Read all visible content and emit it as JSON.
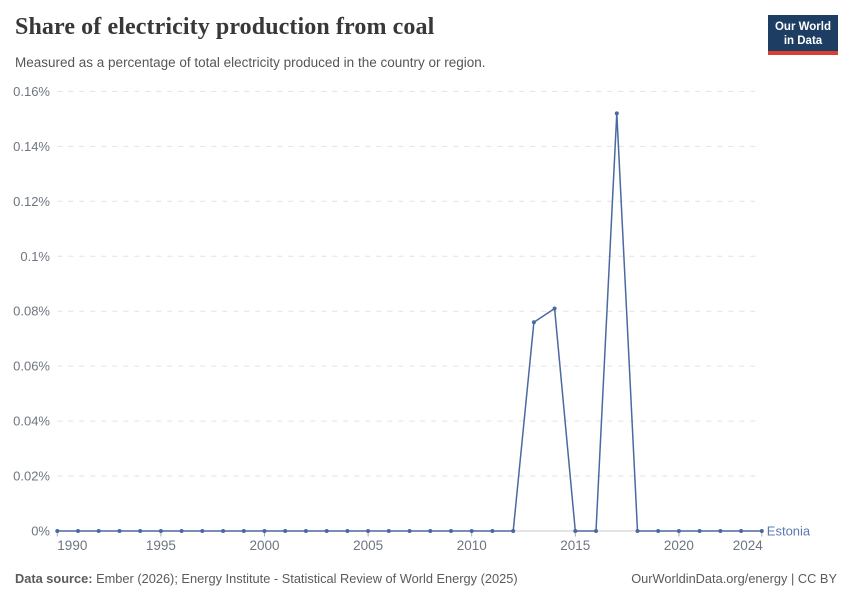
{
  "header": {
    "title": "Share of electricity production from coal",
    "subtitle": "Measured as a percentage of total electricity produced in the country or region.",
    "logo_line1": "Our World",
    "logo_line2": "in Data"
  },
  "chart_data": {
    "type": "line",
    "title": "Share of electricity production from coal",
    "xlabel": "",
    "ylabel": "",
    "xlim": [
      1990,
      2024
    ],
    "ylim": [
      0,
      0.16
    ],
    "grid": "horizontal-dashed",
    "legend_position": "end-of-line",
    "x_tick_years": [
      1990,
      1995,
      2000,
      2005,
      2010,
      2015,
      2020,
      2024
    ],
    "y_ticks": [
      {
        "value": 0,
        "label": "0%"
      },
      {
        "value": 0.02,
        "label": "0.02%"
      },
      {
        "value": 0.04,
        "label": "0.04%"
      },
      {
        "value": 0.06,
        "label": "0.06%"
      },
      {
        "value": 0.08,
        "label": "0.08%"
      },
      {
        "value": 0.1,
        "label": "0.1%"
      },
      {
        "value": 0.12,
        "label": "0.12%"
      },
      {
        "value": 0.14,
        "label": "0.14%"
      },
      {
        "value": 0.16,
        "label": "0.16%"
      }
    ],
    "series": [
      {
        "name": "Estonia",
        "color": "#4a69a2",
        "label_color": "#5b79b0",
        "x": [
          1990,
          1991,
          1992,
          1993,
          1994,
          1995,
          1996,
          1997,
          1998,
          1999,
          2000,
          2001,
          2002,
          2003,
          2004,
          2005,
          2006,
          2007,
          2008,
          2009,
          2010,
          2011,
          2012,
          2013,
          2014,
          2015,
          2016,
          2017,
          2018,
          2019,
          2020,
          2021,
          2022,
          2023,
          2024
        ],
        "values": [
          0,
          0,
          0,
          0,
          0,
          0,
          0,
          0,
          0,
          0,
          0,
          0,
          0,
          0,
          0,
          0,
          0,
          0,
          0,
          0,
          0,
          0,
          0,
          0.076,
          0.081,
          0,
          0,
          0.152,
          0,
          0,
          0,
          0,
          0,
          0,
          0
        ]
      }
    ]
  },
  "footer": {
    "source_label": "Data source:",
    "source_text": " Ember (2026); Energy Institute - Statistical Review of World Energy (2025)",
    "rights": "OurWorldinData.org/energy | CC BY"
  },
  "colors": {
    "line": "#4a69a2",
    "entity_label": "#5b79b0",
    "gridline": "#e2e2e2",
    "axis_line": "#c8c8c8",
    "tick_text": "#6e7581",
    "logo_bg": "#1d3d63",
    "logo_bar": "#dc3e32"
  }
}
